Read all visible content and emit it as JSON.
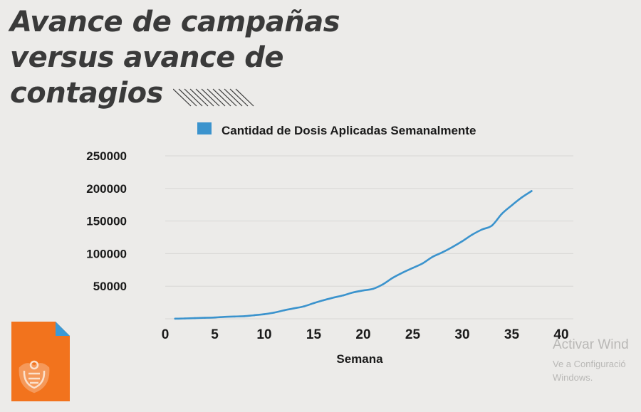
{
  "slide": {
    "title_lines": [
      "Avance de campañas",
      "versus avance de",
      "contagios"
    ]
  },
  "watermark": {
    "title": "Activar Wind",
    "subtitle": "Ve a Configuració Windows."
  },
  "icons": {
    "document": "document-seal-icon",
    "decoration": "hatch-lines-icon"
  },
  "colors": {
    "series": "#3b93cd",
    "icon_orange": "#f2731d",
    "icon_corner": "#3b9ad6",
    "title": "#3a3a3a",
    "grid": "#d8d7d5",
    "background": "#ecebe9"
  },
  "chart_data": {
    "type": "line",
    "title": "",
    "xlabel": "Semana",
    "ylabel": "",
    "xlim": [
      0,
      40
    ],
    "ylim": [
      0,
      250000
    ],
    "xticks": [
      0,
      5,
      10,
      15,
      20,
      25,
      30,
      35,
      40
    ],
    "yticks": [
      50000,
      100000,
      150000,
      200000,
      250000
    ],
    "grid": true,
    "legend": "top",
    "series": [
      {
        "name": "Cantidad de Dosis Aplicadas Semanalmente",
        "x": [
          1,
          2,
          3,
          4,
          5,
          6,
          7,
          8,
          9,
          10,
          11,
          12,
          13,
          14,
          15,
          16,
          17,
          18,
          19,
          20,
          21,
          22,
          23,
          24,
          25,
          26,
          27,
          28,
          29,
          30,
          31,
          32,
          33,
          34,
          35,
          36,
          37
        ],
        "values": [
          200,
          500,
          1000,
          1500,
          2000,
          3000,
          3500,
          4000,
          5500,
          7000,
          9500,
          13000,
          16000,
          19000,
          24000,
          28500,
          32500,
          36000,
          40500,
          43500,
          46000,
          53000,
          63000,
          71000,
          78000,
          85000,
          95000,
          102000,
          110000,
          119000,
          129000,
          137000,
          143000,
          161000,
          174000,
          186000,
          196000
        ]
      }
    ]
  }
}
